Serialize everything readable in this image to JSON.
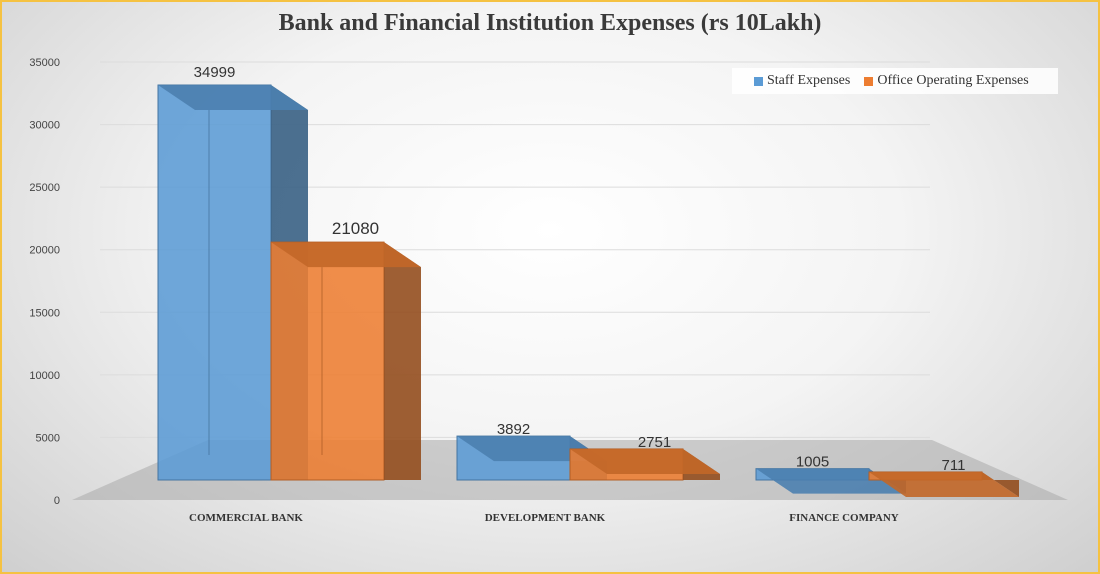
{
  "chart_data": {
    "type": "bar",
    "title": "Bank and Financial Institution Expenses (rs 10Lakh)",
    "categories": [
      "COMMERCIAL BANK",
      "DEVELOPMENT BANK",
      "FINANCE COMPANY"
    ],
    "series": [
      {
        "name": "Staff Expenses",
        "values": [
          34999,
          3892,
          1005
        ],
        "color": "#5b9bd5"
      },
      {
        "name": "Office Operating Expenses",
        "values": [
          21080,
          2751,
          711
        ],
        "color": "#ed7d31"
      }
    ],
    "yticks": [
      "0",
      "5000",
      "10000",
      "15000",
      "20000",
      "25000",
      "30000",
      "35000"
    ],
    "ylim": [
      0,
      35000
    ],
    "legend": "top-right",
    "grid": true,
    "style": "3d-columns"
  }
}
